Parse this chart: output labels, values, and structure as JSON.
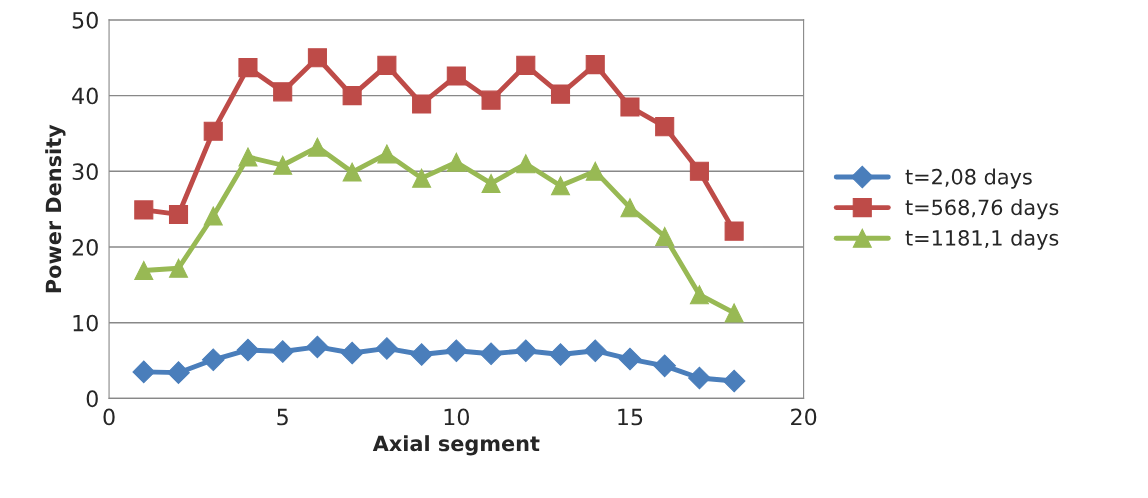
{
  "chart_data": {
    "type": "line",
    "xlabel": "Axial segment",
    "ylabel": "Power Density",
    "x": [
      1,
      2,
      3,
      4,
      5,
      6,
      7,
      8,
      9,
      10,
      11,
      12,
      13,
      14,
      15,
      16,
      17,
      18
    ],
    "xlim": [
      0,
      20
    ],
    "xticks": [
      0,
      5,
      10,
      15,
      20
    ],
    "ylim": [
      0,
      50
    ],
    "yticks": [
      0,
      10,
      20,
      30,
      40,
      50
    ],
    "grid": "y",
    "legend": "right",
    "series": [
      {
        "name": "t=2,08 days",
        "color": "#4a7ebb",
        "marker": "diamond",
        "values": [
          3.5,
          3.4,
          5.1,
          6.4,
          6.2,
          6.8,
          6.0,
          6.6,
          5.8,
          6.3,
          5.9,
          6.3,
          5.8,
          6.3,
          5.2,
          4.3,
          2.7,
          2.3
        ]
      },
      {
        "name": "t=568,76 days",
        "color": "#be4b48",
        "marker": "square",
        "values": [
          24.9,
          24.3,
          35.3,
          43.7,
          40.5,
          45.0,
          40.0,
          44.0,
          38.9,
          42.6,
          39.4,
          44.0,
          40.2,
          44.1,
          38.5,
          35.9,
          30.0,
          22.1
        ]
      },
      {
        "name": "t=1181,1 days",
        "color": "#98b954",
        "marker": "triangle",
        "values": [
          16.9,
          17.2,
          24.1,
          31.9,
          30.8,
          33.2,
          29.9,
          32.3,
          29.1,
          31.2,
          28.4,
          31.0,
          28.1,
          30.0,
          25.2,
          21.4,
          13.7,
          11.3
        ]
      }
    ]
  }
}
